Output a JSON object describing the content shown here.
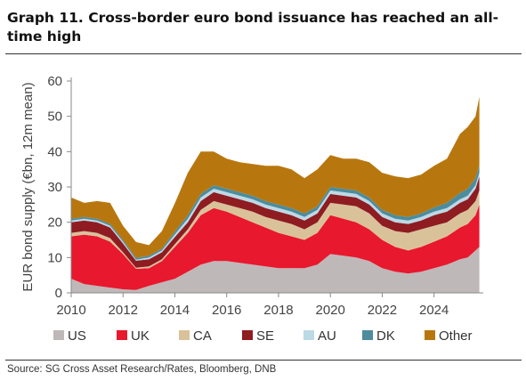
{
  "figure": {
    "title_line1": "Graph 11.  Cross-border euro bond issuance has reached an all-",
    "title_line2": "time high",
    "source": "Source: SG Cross Asset Research/Rates, Bloomberg, DNB"
  },
  "chart_data": {
    "type": "area",
    "stacked": true,
    "ylabel": "EUR bond supply (€bn, 12m mean)",
    "ylim": [
      0,
      60
    ],
    "yticks": [
      0,
      10,
      20,
      30,
      40,
      50,
      60
    ],
    "xlim": [
      2010,
      2025.9
    ],
    "xticks": [
      2010,
      2012,
      2014,
      2016,
      2018,
      2020,
      2022,
      2024
    ],
    "grid": false,
    "legend_position": "bottom",
    "x": [
      2010.0,
      2010.5,
      2011.0,
      2011.5,
      2012.0,
      2012.5,
      2013.0,
      2013.5,
      2014.0,
      2014.5,
      2015.0,
      2015.5,
      2016.0,
      2016.5,
      2017.0,
      2017.5,
      2018.0,
      2018.5,
      2019.0,
      2019.5,
      2020.0,
      2020.5,
      2021.0,
      2021.5,
      2022.0,
      2022.5,
      2023.0,
      2023.5,
      2024.0,
      2024.5,
      2025.0,
      2025.3,
      2025.6,
      2025.75
    ],
    "series": [
      {
        "name": "US",
        "color": "#bfb8b8",
        "values": [
          4,
          2.5,
          2,
          1.5,
          1,
          0.8,
          2,
          3,
          4,
          6,
          8,
          9,
          9,
          8.5,
          8,
          7.5,
          7,
          7,
          7,
          8,
          11,
          10.5,
          10,
          9,
          7,
          6,
          5.5,
          6,
          7,
          8,
          9.5,
          10,
          12,
          13
        ]
      },
      {
        "name": "UK",
        "color": "#e8182e",
        "values": [
          12,
          14,
          14,
          13,
          10,
          6,
          5,
          6,
          9,
          11,
          14,
          15,
          14,
          13,
          12,
          11,
          10,
          9,
          8,
          9,
          11,
          10.5,
          10,
          9,
          8,
          7,
          6.5,
          7,
          7.5,
          8,
          9,
          9.5,
          10,
          12
        ]
      },
      {
        "name": "CA",
        "color": "#d9c29a",
        "values": [
          1,
          1,
          1,
          1,
          0.5,
          0.3,
          0.5,
          0.5,
          0.8,
          1,
          1.5,
          2,
          2,
          2.5,
          3,
          3,
          3.5,
          3.5,
          3,
          3,
          3.5,
          4,
          4.5,
          4.5,
          4,
          4.5,
          5,
          5,
          4.5,
          4,
          4,
          4,
          4,
          4
        ]
      },
      {
        "name": "SE",
        "color": "#8e1c21",
        "values": [
          3,
          3,
          3,
          3,
          2.5,
          2,
          2,
          2,
          2,
          2,
          2.5,
          2.5,
          2.5,
          2.5,
          2.5,
          2.5,
          2.5,
          2.5,
          2.5,
          2.5,
          2.5,
          2.5,
          2.5,
          2.5,
          2.5,
          2.5,
          2.5,
          2.5,
          3,
          3,
          3,
          3,
          3.5,
          4
        ]
      },
      {
        "name": "AU",
        "color": "#bcd9e6",
        "values": [
          0.5,
          0.5,
          0.5,
          0.5,
          0.5,
          0.3,
          0.5,
          0.5,
          0.8,
          1,
          1,
          1,
          1,
          1,
          1,
          1,
          1,
          1,
          1,
          1,
          1,
          1,
          1,
          1,
          1,
          1,
          1,
          1,
          1,
          1,
          1,
          1,
          1,
          1
        ]
      },
      {
        "name": "DK",
        "color": "#4c8c9e",
        "values": [
          0.5,
          0.5,
          0.5,
          0.5,
          0.5,
          0.5,
          0.5,
          0.5,
          0.8,
          1,
          1,
          1,
          1,
          1,
          1,
          1,
          1,
          1,
          1,
          1,
          1,
          1,
          1,
          1,
          1,
          1,
          1,
          1,
          1.2,
          1.5,
          1.8,
          2,
          2,
          2
        ]
      },
      {
        "name": "Other",
        "color": "#b8770e",
        "values": [
          6,
          4,
          5,
          6,
          4,
          4.5,
          3,
          5,
          8,
          12,
          12,
          9.5,
          8.5,
          8.5,
          9,
          10,
          11,
          11,
          10,
          10.5,
          9,
          8.5,
          9,
          10,
          10.5,
          11,
          11,
          11,
          11.8,
          12.5,
          16.7,
          17.5,
          17.5,
          19.5
        ]
      }
    ]
  }
}
